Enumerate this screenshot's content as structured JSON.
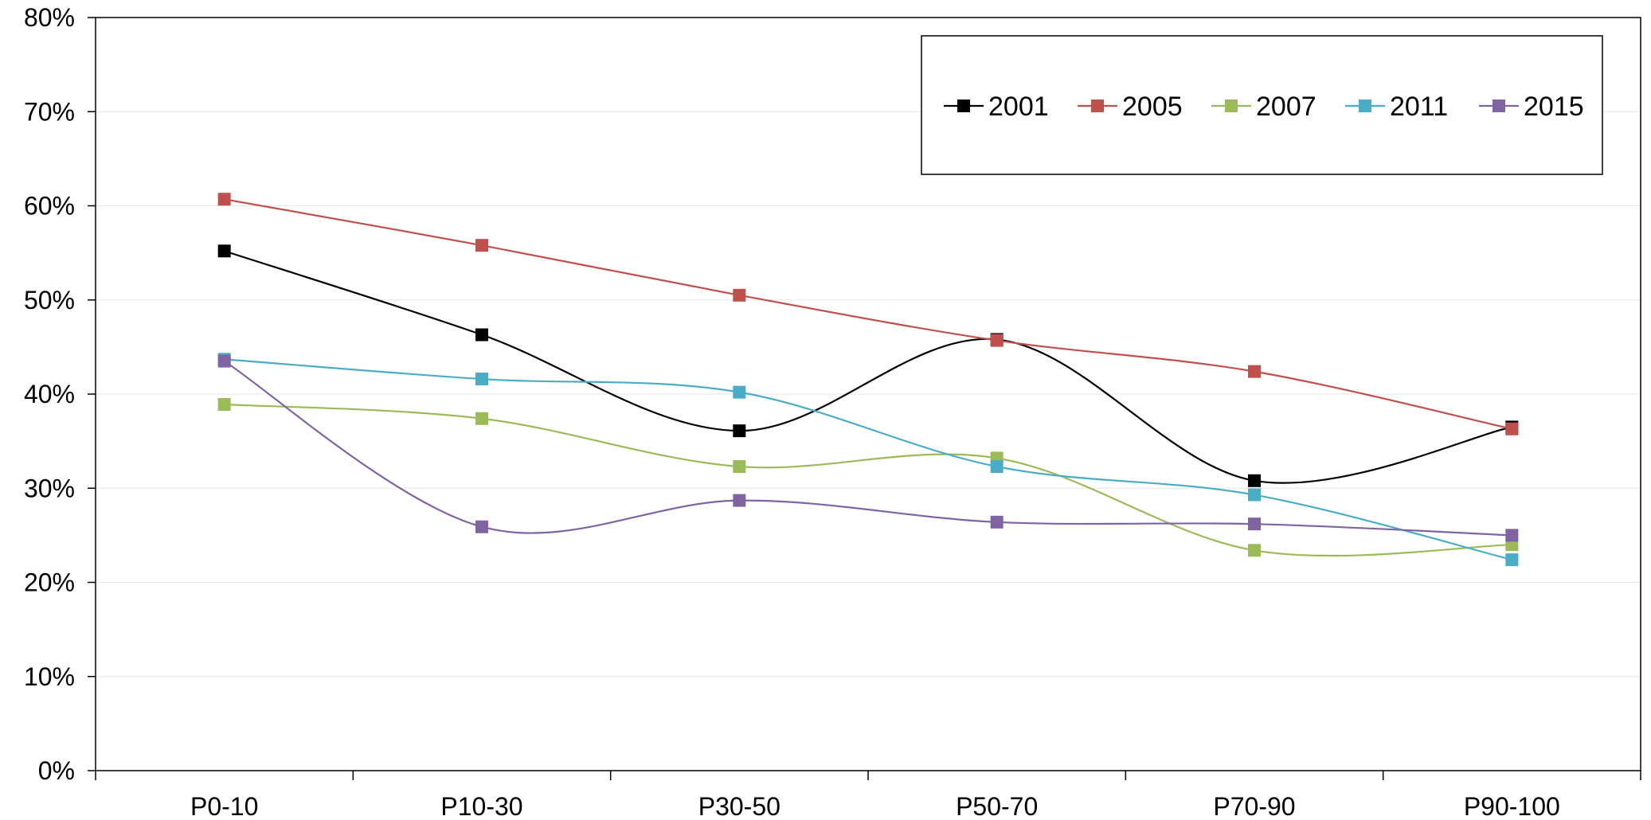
{
  "chart_data": {
    "type": "line",
    "title": "",
    "xlabel": "",
    "ylabel": "",
    "categories": [
      "P0-10",
      "P10-30",
      "P30-50",
      "P50-70",
      "P70-90",
      "P90-100"
    ],
    "ylim": [
      0,
      80
    ],
    "y_ticks": [
      "0%",
      "10%",
      "20%",
      "30%",
      "40%",
      "50%",
      "60%",
      "70%",
      "80%"
    ],
    "y_unit": "%",
    "grid": true,
    "smooth": true,
    "marker": "square",
    "legend_position": "top-right",
    "series": [
      {
        "name": "2001",
        "color": "#000000",
        "values": [
          55.2,
          46.3,
          36.1,
          45.8,
          30.8,
          36.5
        ]
      },
      {
        "name": "2005",
        "color": "#c0504d",
        "values": [
          60.7,
          55.8,
          50.5,
          45.7,
          42.4,
          36.3
        ]
      },
      {
        "name": "2007",
        "color": "#9bbb59",
        "values": [
          38.9,
          37.4,
          32.3,
          33.2,
          23.4,
          24.0
        ]
      },
      {
        "name": "2011",
        "color": "#4bacc6",
        "values": [
          43.7,
          41.6,
          40.2,
          32.3,
          29.3,
          22.4
        ]
      },
      {
        "name": "2015",
        "color": "#8064a2",
        "values": [
          43.5,
          25.9,
          28.7,
          26.4,
          26.2,
          25.0
        ]
      }
    ]
  }
}
